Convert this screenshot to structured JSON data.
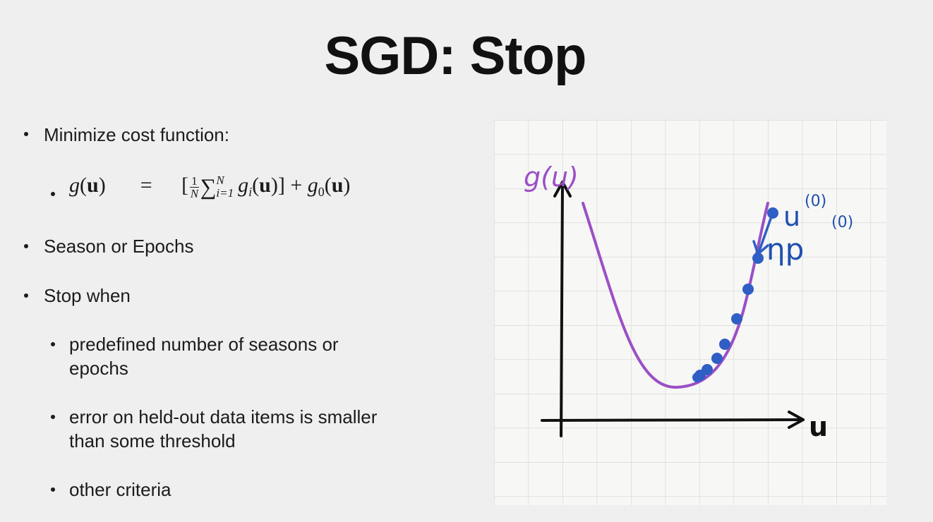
{
  "slide": {
    "title": "SGD: Stop",
    "bullets": {
      "b1": "Minimize cost function:",
      "b2": "Season or Epochs",
      "b3": "Stop when",
      "s1_line1": "predefined number of seasons or",
      "s1_line2": "epochs",
      "s2_line1": "error on held-out data items is smaller",
      "s2_line2": "than some threshold",
      "s3": "other criteria"
    },
    "formula": {
      "lhs_fn": "g",
      "arg": "u",
      "equals": "=",
      "frac_num": "1",
      "frac_den": "N",
      "sum": "∑",
      "sum_sup": "N",
      "sum_sub": "i=1",
      "term_fn": "g",
      "term_sub": "i",
      "plus": "+",
      "reg_fn": "g",
      "reg_sub": "0"
    },
    "sketch": {
      "y_label": "g(u)",
      "x_label": "u",
      "start_label": "u",
      "start_sup": "(0)",
      "step_label": "ηp",
      "step_sup": "(0)",
      "curve_color": "#9b4fc6",
      "ink_color": "#1f4fb0",
      "grid_color": "#d4d4d4",
      "paper_color": "#f7f7f5",
      "sgd_point_count": 9
    }
  }
}
